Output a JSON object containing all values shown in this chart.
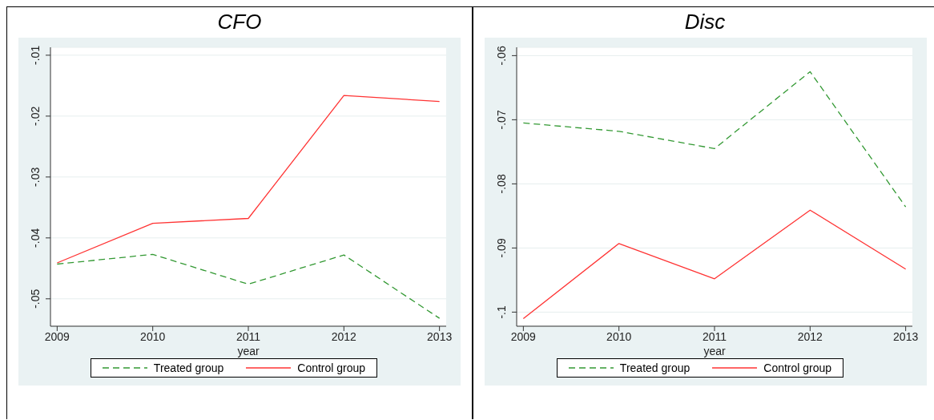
{
  "chart_data": [
    {
      "type": "line",
      "title": "CFO",
      "xlabel": "year",
      "x": [
        2009,
        2010,
        2011,
        2012,
        2013
      ],
      "xlim": [
        2008.93,
        2013.07
      ],
      "xticks": [
        2009,
        2010,
        2011,
        2012,
        2013
      ],
      "ylim": [
        -0.0545,
        -0.0087
      ],
      "yticks": [
        {
          "value": -0.05,
          "label": "-.05"
        },
        {
          "value": -0.04,
          "label": "-.04"
        },
        {
          "value": -0.03,
          "label": "-.03"
        },
        {
          "value": -0.02,
          "label": "-.02"
        },
        {
          "value": -0.01,
          "label": "-.01"
        }
      ],
      "grid": "y",
      "legend": "bottom",
      "marker": "none",
      "series": [
        {
          "name": "Treated group",
          "color": "#339933",
          "line_style": "dashed",
          "values": [
            -0.0443,
            -0.0427,
            -0.0476,
            -0.0428,
            -0.0532
          ]
        },
        {
          "name": "Control group",
          "color": "#ff3333",
          "line_style": "solid",
          "values": [
            -0.0441,
            -0.0376,
            -0.0368,
            -0.0166,
            -0.0176
          ]
        }
      ]
    },
    {
      "type": "line",
      "title": "Disc",
      "xlabel": "year",
      "x": [
        2009,
        2010,
        2011,
        2012,
        2013
      ],
      "xlim": [
        2008.93,
        2013.07
      ],
      "xticks": [
        2009,
        2010,
        2011,
        2012,
        2013
      ],
      "ylim": [
        -0.1022,
        -0.0587
      ],
      "yticks": [
        {
          "value": -0.1,
          "label": "-.1"
        },
        {
          "value": -0.09,
          "label": "-.09"
        },
        {
          "value": -0.08,
          "label": "-.08"
        },
        {
          "value": -0.07,
          "label": "-.07"
        },
        {
          "value": -0.06,
          "label": "-.06"
        }
      ],
      "grid": "y",
      "legend": "bottom",
      "marker": "none",
      "series": [
        {
          "name": "Treated group",
          "color": "#339933",
          "line_style": "dashed",
          "values": [
            -0.0705,
            -0.0718,
            -0.0745,
            -0.0625,
            -0.0836
          ]
        },
        {
          "name": "Control group",
          "color": "#ff3333",
          "line_style": "solid",
          "values": [
            -0.101,
            -0.0893,
            -0.0948,
            -0.0841,
            -0.0933
          ]
        }
      ]
    }
  ]
}
